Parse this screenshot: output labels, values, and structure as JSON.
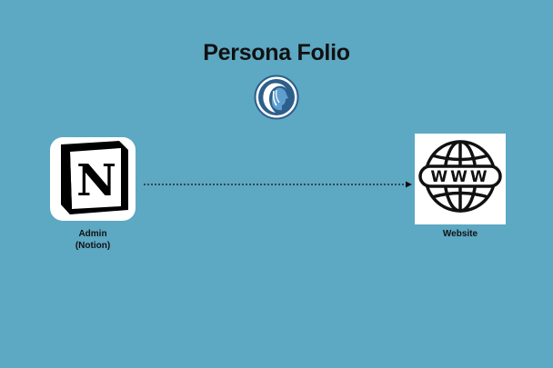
{
  "title": "Persona Folio",
  "nodes": {
    "admin": {
      "line1": "Admin",
      "line2": "(Notion)",
      "icon": "notion-logo-icon"
    },
    "website": {
      "label": "Website",
      "icon": "www-globe-icon",
      "icon_text": "WWW"
    }
  },
  "logo": {
    "icon": "persona-folio-logo-icon"
  },
  "edges": [
    {
      "from": "admin",
      "to": "website",
      "style": "dotted",
      "arrow": true
    }
  ],
  "colors": {
    "background": "#5da8c2",
    "logo_blue": "#2d5f8c",
    "text": "#111111"
  }
}
